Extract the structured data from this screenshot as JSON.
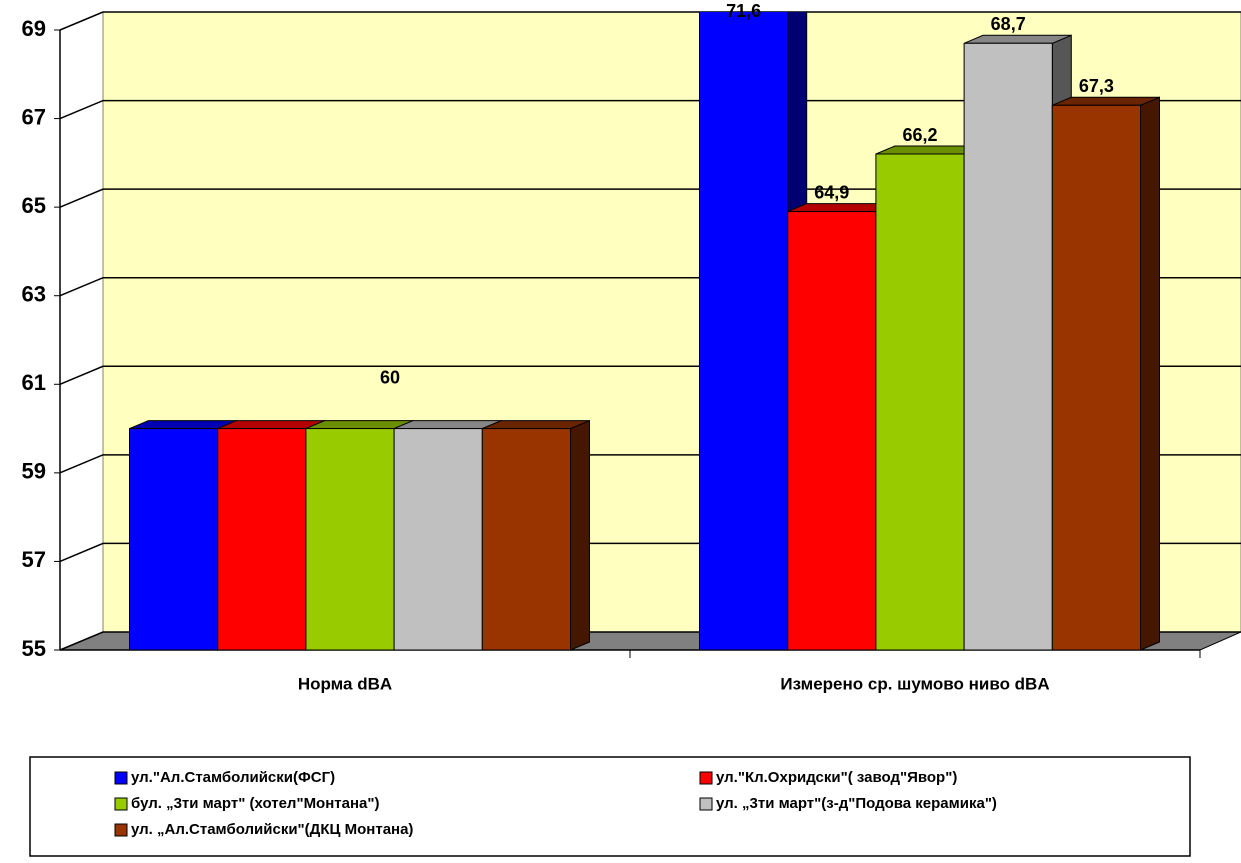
{
  "chart_data": {
    "type": "bar3d",
    "categories": [
      "Норма dBA",
      "Измерено ср. шумово ниво dBA"
    ],
    "series": [
      {
        "name": "ул.\"Ал.Стамболийски(ФСГ)",
        "color": "#0000ff",
        "values": [
          60,
          71.6
        ],
        "value_labels": [
          null,
          "71,6"
        ]
      },
      {
        "name": "ул.\"Кл.Охридски\"( завод\"Явор\")",
        "color": "#ff0000",
        "values": [
          60,
          64.9
        ],
        "value_labels": [
          null,
          "64,9"
        ]
      },
      {
        "name": " бул. „3ти март\" (хотел\"Монтана\")",
        "color": "#99cc00",
        "values": [
          60,
          66.2
        ],
        "value_labels": [
          "60",
          "66,2"
        ]
      },
      {
        "name": "ул. „3ти март\"(з-д\"Подова керамика\")",
        "color": "#c0c0c0",
        "values": [
          60,
          68.7
        ],
        "value_labels": [
          null,
          "68,7"
        ]
      },
      {
        "name": "ул. „Ал.Стамболийски\"(ДКЦ Монтана)",
        "color": "#993300",
        "values": [
          60,
          67.3
        ],
        "value_labels": [
          null,
          "67,3"
        ]
      }
    ],
    "ylim": [
      55,
      69
    ],
    "yticks": [
      55,
      57,
      59,
      61,
      63,
      65,
      67,
      69
    ],
    "grid": true,
    "legend": "bottom"
  }
}
